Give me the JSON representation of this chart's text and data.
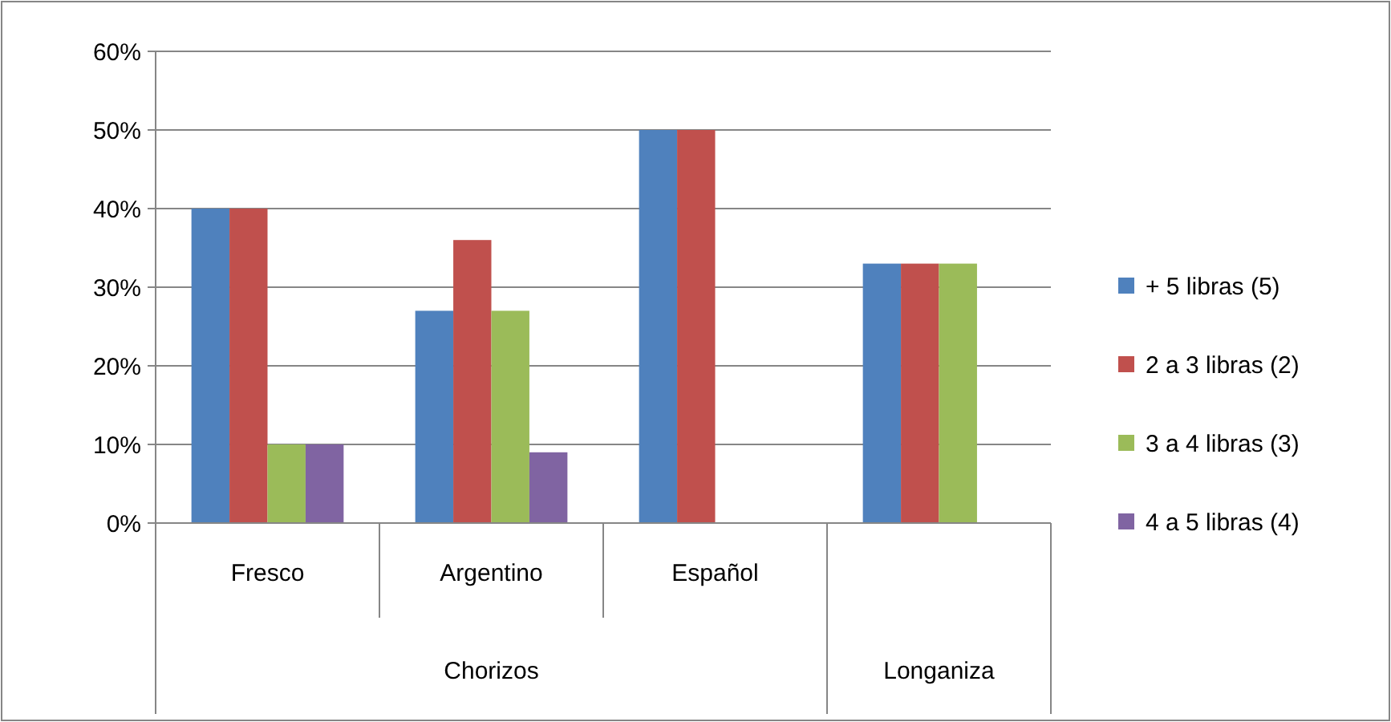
{
  "chart_data": {
    "type": "bar",
    "categories": [
      "Fresco",
      "Argentino",
      "Español",
      null
    ],
    "series": [
      {
        "name": "+ 5 libras (5)",
        "color": "#4f81bd",
        "values": [
          40,
          27,
          50,
          33
        ]
      },
      {
        "name": "2 a 3 libras (2)",
        "color": "#c0504d",
        "values": [
          40,
          36,
          50,
          33
        ]
      },
      {
        "name": "3 a 4 libras (3)",
        "color": "#9bbb59",
        "values": [
          10,
          27,
          null,
          33
        ]
      },
      {
        "name": "4 a 5 libras (4)",
        "color": "#8064a2",
        "values": [
          10,
          9,
          null,
          null
        ]
      }
    ],
    "annotations": [
      "Chorizos",
      "Longaniza"
    ],
    "ylim": [
      0,
      60
    ],
    "yticks": [
      {
        "value": 0,
        "label": "0%"
      },
      {
        "value": 10,
        "label": "10%"
      },
      {
        "value": 20,
        "label": "20%"
      },
      {
        "value": 30,
        "label": "30%"
      },
      {
        "value": 40,
        "label": "40%"
      },
      {
        "value": 50,
        "label": "50%"
      },
      {
        "value": 60,
        "label": "60%"
      }
    ],
    "grid": "y",
    "legend": "right"
  }
}
